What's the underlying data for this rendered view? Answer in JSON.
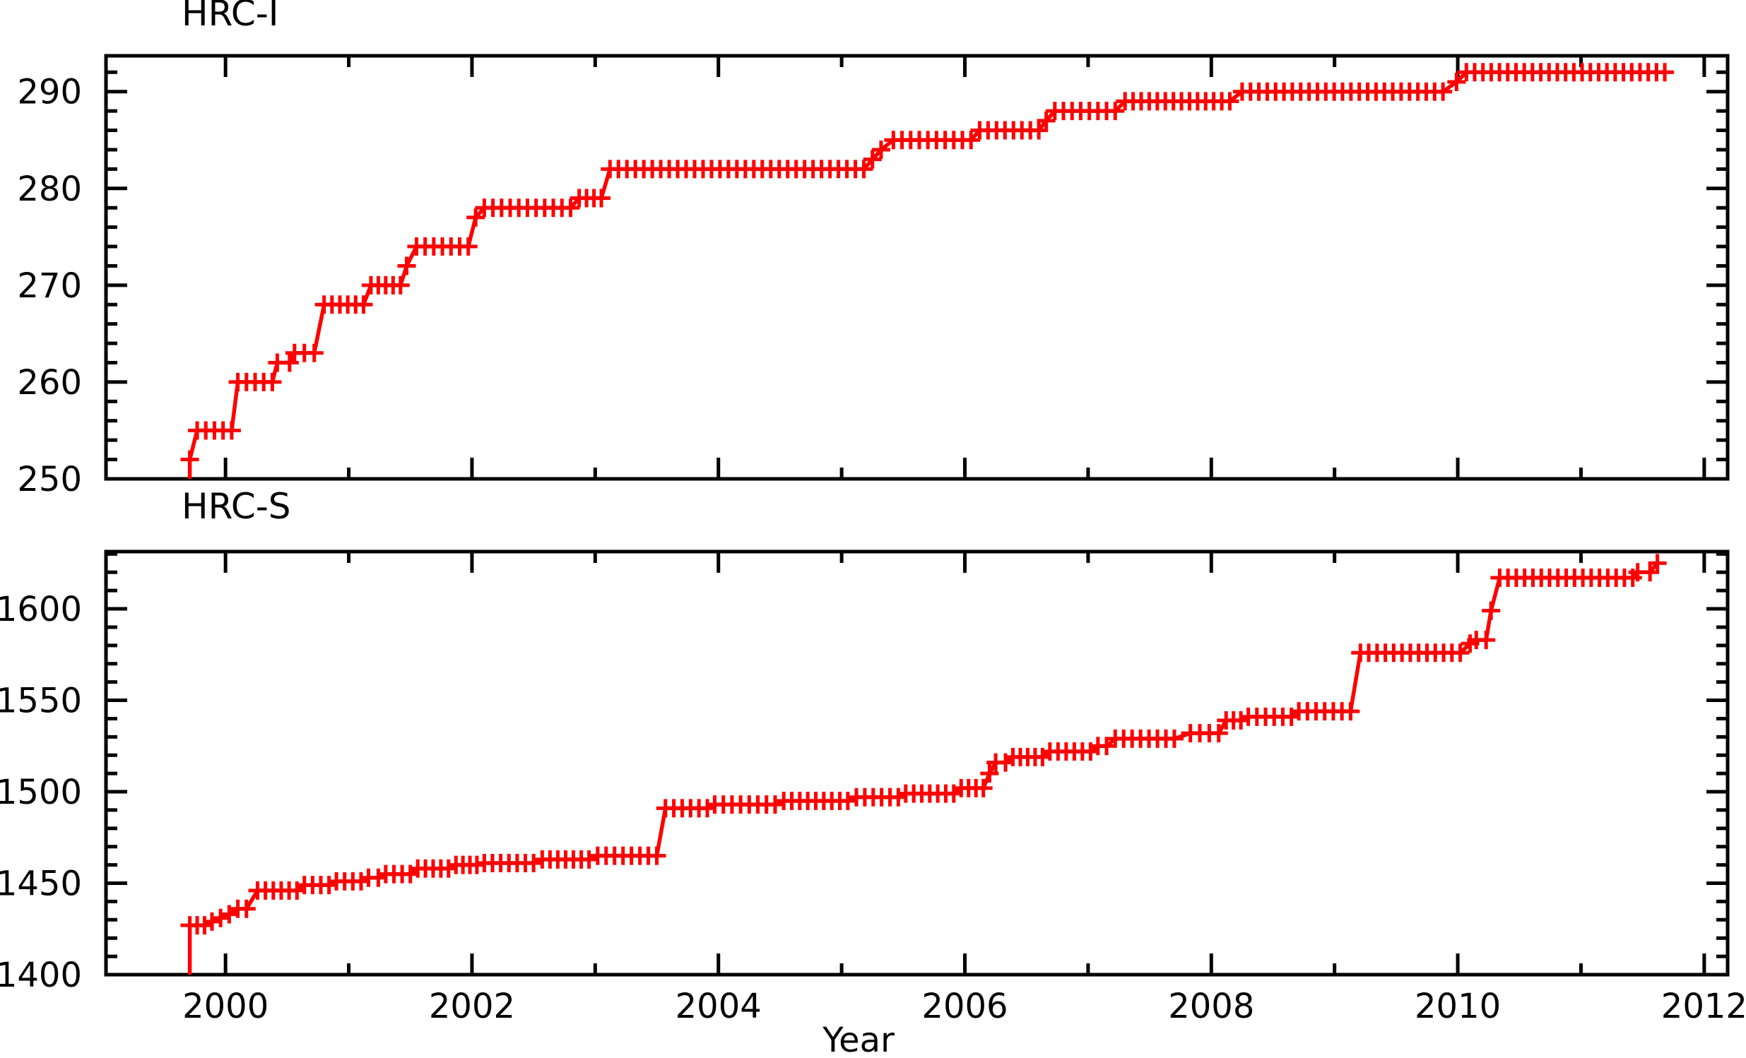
{
  "figure": {
    "background": "#ffffff",
    "axis_color": "#000000",
    "series_color": "#ff0000"
  },
  "chart_data": [
    {
      "type": "line",
      "title": "HRC-I",
      "xlabel": "",
      "ylabel": "",
      "xlim": [
        1999.03,
        2012.19
      ],
      "ylim": [
        250,
        293.7
      ],
      "x_major_ticks": [
        2000,
        2002,
        2004,
        2006,
        2008,
        2010,
        2012
      ],
      "x_minor_step": 1,
      "x_tick_labels": [],
      "y_major_ticks": [
        250,
        260,
        270,
        280,
        290
      ],
      "y_minor_step": 2,
      "y_tick_labels": [
        250,
        260,
        270,
        280,
        290
      ],
      "grid": false,
      "legend": null,
      "marker": "plus",
      "marker_interval_years": 0.068,
      "series": [
        {
          "name": "HRC-I",
          "color": "#ff0000",
          "starts_at_axis": true,
          "plateaus": [
            [
              1999.71,
              1999.71,
              252
            ],
            [
              1999.77,
              2000.05,
              255
            ],
            [
              2000.1,
              2000.38,
              260
            ],
            [
              2000.42,
              2000.52,
              262
            ],
            [
              2000.56,
              2000.72,
              263
            ],
            [
              2000.8,
              2001.12,
              268
            ],
            [
              2001.18,
              2001.42,
              270
            ],
            [
              2001.47,
              2001.47,
              272
            ],
            [
              2001.55,
              2001.97,
              274
            ],
            [
              2002.03,
              2002.03,
              277
            ],
            [
              2002.1,
              2002.8,
              278
            ],
            [
              2002.87,
              2003.05,
              279
            ],
            [
              2003.12,
              2005.18,
              282
            ],
            [
              2005.25,
              2005.25,
              283
            ],
            [
              2005.32,
              2005.32,
              284
            ],
            [
              2005.42,
              2006.05,
              285
            ],
            [
              2006.12,
              2006.6,
              286
            ],
            [
              2006.66,
              2006.66,
              287
            ],
            [
              2006.73,
              2007.22,
              288
            ],
            [
              2007.3,
              2008.15,
              289
            ],
            [
              2008.25,
              2009.88,
              290
            ],
            [
              2009.99,
              2009.99,
              291
            ],
            [
              2010.07,
              2011.68,
              292
            ]
          ]
        }
      ]
    },
    {
      "type": "line",
      "title": "HRC-S",
      "xlabel": "Year",
      "ylabel": "",
      "xlim": [
        1999.03,
        2012.19
      ],
      "ylim": [
        1400,
        1631.3
      ],
      "x_major_ticks": [
        2000,
        2002,
        2004,
        2006,
        2008,
        2010,
        2012
      ],
      "x_minor_step": 1,
      "x_tick_labels": [
        2000,
        2002,
        2004,
        2006,
        2008,
        2010,
        2012
      ],
      "y_major_ticks": [
        1400,
        1450,
        1500,
        1550,
        1600
      ],
      "y_minor_step": 10,
      "y_tick_labels": [
        1400,
        1450,
        1500,
        1550,
        1600
      ],
      "grid": false,
      "legend": null,
      "marker": "plus",
      "marker_interval_years": 0.068,
      "series": [
        {
          "name": "HRC-S",
          "color": "#ff0000",
          "starts_at_axis": true,
          "plateaus": [
            [
              1999.71,
              1999.83,
              1427
            ],
            [
              1999.89,
              1999.89,
              1429
            ],
            [
              1999.96,
              1999.96,
              1431
            ],
            [
              2000.03,
              2000.03,
              1433
            ],
            [
              2000.1,
              2000.17,
              1436
            ],
            [
              2000.26,
              2000.58,
              1446
            ],
            [
              2000.64,
              2000.84,
              1449
            ],
            [
              2000.9,
              2001.1,
              1451
            ],
            [
              2001.16,
              2001.24,
              1453
            ],
            [
              2001.3,
              2001.5,
              1455
            ],
            [
              2001.56,
              2001.81,
              1458
            ],
            [
              2001.87,
              2002.04,
              1460
            ],
            [
              2002.1,
              2002.5,
              1461
            ],
            [
              2002.57,
              2002.95,
              1463
            ],
            [
              2003.02,
              2003.5,
              1465
            ],
            [
              2003.57,
              2003.91,
              1491
            ],
            [
              2003.97,
              2004.46,
              1493
            ],
            [
              2004.53,
              2005.05,
              1495
            ],
            [
              2005.12,
              2005.46,
              1497
            ],
            [
              2005.52,
              2005.91,
              1499
            ],
            [
              2005.97,
              2006.15,
              1502
            ],
            [
              2006.2,
              2006.2,
              1510
            ],
            [
              2006.25,
              2006.33,
              1516
            ],
            [
              2006.39,
              2006.63,
              1519
            ],
            [
              2006.69,
              2007.02,
              1522
            ],
            [
              2007.08,
              2007.15,
              1525
            ],
            [
              2007.22,
              2007.7,
              1529
            ],
            [
              2007.83,
              2008.06,
              1532
            ],
            [
              2008.12,
              2008.24,
              1539
            ],
            [
              2008.3,
              2008.65,
              1541
            ],
            [
              2008.71,
              2009.13,
              1544
            ],
            [
              2009.21,
              2010.02,
              1576
            ],
            [
              2010.1,
              2010.1,
              1581
            ],
            [
              2010.15,
              2010.23,
              1583
            ],
            [
              2010.27,
              2010.27,
              1599
            ],
            [
              2010.34,
              2011.42,
              1617
            ],
            [
              2011.46,
              2011.56,
              1620
            ],
            [
              2011.62,
              2011.62,
              1625
            ]
          ]
        }
      ]
    }
  ]
}
